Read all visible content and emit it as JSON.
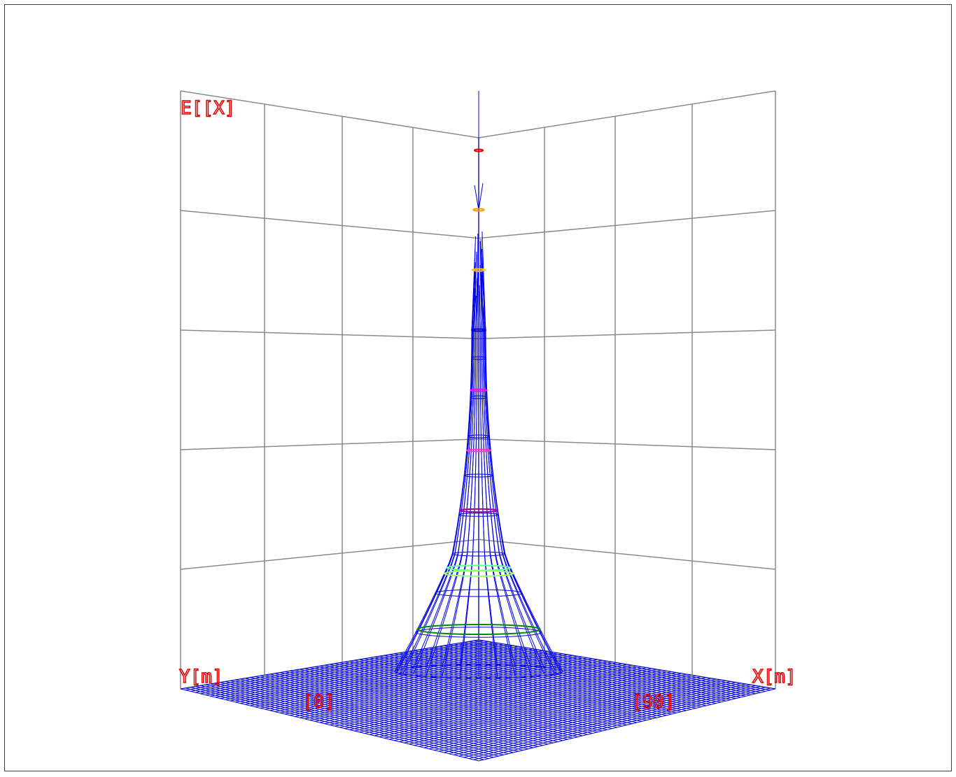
{
  "chart_data": {
    "type": "surface-3d-wireframe",
    "z_axis_label": "E[[X]",
    "y_axis_label": "Y[m]",
    "x_axis_label": "X[m]",
    "y_tick_label": "[0]",
    "x_tick_label": "[90]",
    "grid": true,
    "description_of_shape": "single narrow peak at the center of the base plane",
    "contour_colors": [
      "#e00000",
      "#ff9900",
      "#ffcc00",
      "#0000cc",
      "#ff00ff",
      "#ff33cc",
      "#990099",
      "#66ff99",
      "#99ff66",
      "#008800"
    ],
    "mesh_color": "#0000e6"
  }
}
